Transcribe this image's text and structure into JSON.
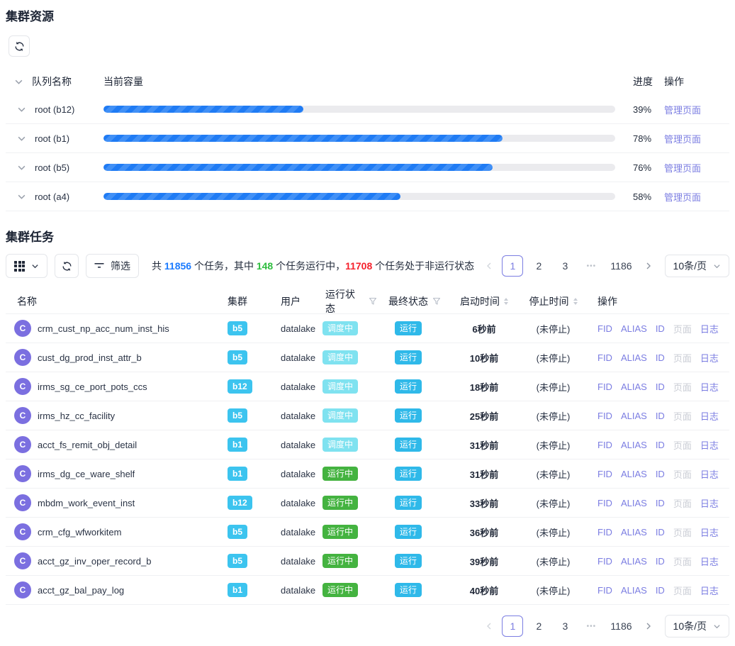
{
  "colors": {
    "purple": "#7b7de2",
    "blue": "#1b7bff",
    "green": "#2ebd3f",
    "red": "#f5222d",
    "cyan": "#3cc4ef",
    "cyan-deep": "#2fb9e9",
    "cyan-light": "#7fe2f0",
    "green-badge": "#44b340",
    "avatar": "#7b6fe0",
    "bar-blue": "#1f7bf4"
  },
  "resources": {
    "title": "集群资源",
    "columns": {
      "queue": "队列名称",
      "capacity": "当前容量",
      "progress": "进度",
      "action": "操作"
    },
    "rows": [
      {
        "queue": "root (b12)",
        "pct": 39,
        "pct_label": "39%",
        "action": "管理页面"
      },
      {
        "queue": "root (b1)",
        "pct": 78,
        "pct_label": "78%",
        "action": "管理页面"
      },
      {
        "queue": "root (b5)",
        "pct": 76,
        "pct_label": "76%",
        "action": "管理页面"
      },
      {
        "queue": "root (a4)",
        "pct": 58,
        "pct_label": "58%",
        "action": "管理页面"
      }
    ]
  },
  "tasks": {
    "title": "集群任务",
    "toolbar": {
      "filter_label": "筛选",
      "summary": [
        {
          "text": "共 ",
          "cls": ""
        },
        {
          "text": "11856",
          "cls": "num-blue"
        },
        {
          "text": " 个任务，其中 ",
          "cls": ""
        },
        {
          "text": "148",
          "cls": "num-green"
        },
        {
          "text": " 个任务运行中，",
          "cls": ""
        },
        {
          "text": "11708",
          "cls": "num-red"
        },
        {
          "text": " 个任务处于非运行状态",
          "cls": ""
        }
      ]
    },
    "columns": {
      "name": "名称",
      "cluster": "集群",
      "user": "用户",
      "run_state": "运行状态",
      "final_state": "最终状态",
      "start_time": "启动时间",
      "stop_time": "停止时间",
      "action": "操作"
    },
    "avatar_letter": "C",
    "ops": {
      "fid": "FID",
      "alias": "ALIAS",
      "id": "ID",
      "page": "页面",
      "log": "日志"
    },
    "rows": [
      {
        "name": "crm_cust_np_acc_num_inst_his",
        "cluster": "b5",
        "user": "datalake",
        "run_state": "调度中",
        "run_cls": "badge-scheduling",
        "final_state": "运行",
        "start_time": "6秒前",
        "stop_time": "(未停止)"
      },
      {
        "name": "cust_dg_prod_inst_attr_b",
        "cluster": "b5",
        "user": "datalake",
        "run_state": "调度中",
        "run_cls": "badge-scheduling",
        "final_state": "运行",
        "start_time": "10秒前",
        "stop_time": "(未停止)"
      },
      {
        "name": "irms_sg_ce_port_pots_ccs",
        "cluster": "b12",
        "user": "datalake",
        "run_state": "调度中",
        "run_cls": "badge-scheduling",
        "final_state": "运行",
        "start_time": "18秒前",
        "stop_time": "(未停止)"
      },
      {
        "name": "irms_hz_cc_facility",
        "cluster": "b5",
        "user": "datalake",
        "run_state": "调度中",
        "run_cls": "badge-scheduling",
        "final_state": "运行",
        "start_time": "25秒前",
        "stop_time": "(未停止)"
      },
      {
        "name": "acct_fs_remit_obj_detail",
        "cluster": "b1",
        "user": "datalake",
        "run_state": "调度中",
        "run_cls": "badge-scheduling",
        "final_state": "运行",
        "start_time": "31秒前",
        "stop_time": "(未停止)"
      },
      {
        "name": "irms_dg_ce_ware_shelf",
        "cluster": "b1",
        "user": "datalake",
        "run_state": "运行中",
        "run_cls": "badge-running",
        "final_state": "运行",
        "start_time": "31秒前",
        "stop_time": "(未停止)"
      },
      {
        "name": "mbdm_work_event_inst",
        "cluster": "b12",
        "user": "datalake",
        "run_state": "运行中",
        "run_cls": "badge-running",
        "final_state": "运行",
        "start_time": "33秒前",
        "stop_time": "(未停止)"
      },
      {
        "name": "crm_cfg_wfworkitem",
        "cluster": "b5",
        "user": "datalake",
        "run_state": "运行中",
        "run_cls": "badge-running",
        "final_state": "运行",
        "start_time": "36秒前",
        "stop_time": "(未停止)"
      },
      {
        "name": "acct_gz_inv_oper_record_b",
        "cluster": "b5",
        "user": "datalake",
        "run_state": "运行中",
        "run_cls": "badge-running",
        "final_state": "运行",
        "start_time": "39秒前",
        "stop_time": "(未停止)"
      },
      {
        "name": "acct_gz_bal_pay_log",
        "cluster": "b1",
        "user": "datalake",
        "run_state": "运行中",
        "run_cls": "badge-running",
        "final_state": "运行",
        "start_time": "40秒前",
        "stop_time": "(未停止)"
      }
    ]
  },
  "pagination": {
    "items": [
      {
        "label": "1",
        "cls": "active"
      },
      {
        "label": "2",
        "cls": ""
      },
      {
        "label": "3",
        "cls": ""
      },
      {
        "label": "•••",
        "cls": "ellipsis"
      },
      {
        "label": "1186",
        "cls": ""
      }
    ],
    "page_size": "10条/页"
  }
}
